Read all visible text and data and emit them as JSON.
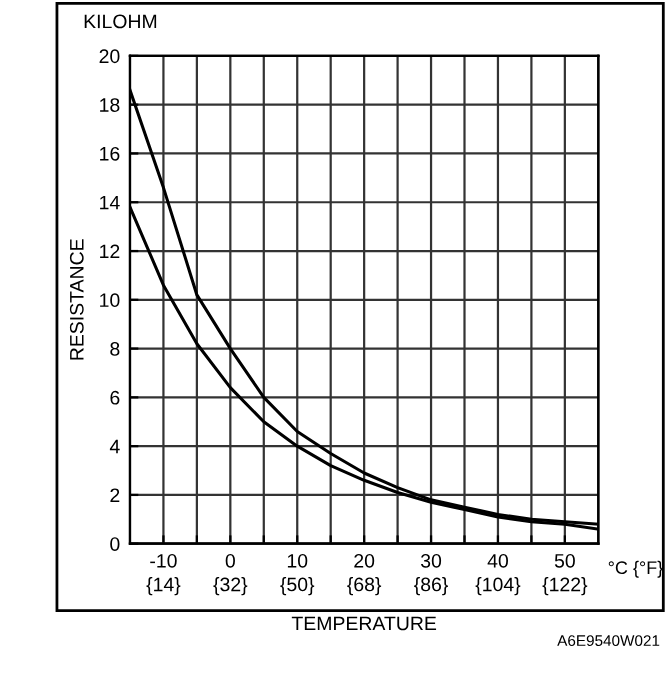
{
  "chart_data": {
    "type": "line",
    "title": "KILOHM",
    "xlabel": "TEMPERATURE",
    "ylabel": "RESISTANCE",
    "x": [
      -15,
      -10,
      -5,
      0,
      5,
      10,
      15,
      20,
      25,
      30,
      35,
      40,
      45,
      50,
      55
    ],
    "series": [
      {
        "color": "#000000",
        "values": [
          18.6,
          14.6,
          10.2,
          8.0,
          6.0,
          4.6,
          3.7,
          2.9,
          2.3,
          1.8,
          1.5,
          1.2,
          1.0,
          0.9,
          0.8
        ]
      },
      {
        "color": "#000000",
        "values": [
          13.8,
          10.6,
          8.2,
          6.4,
          5.0,
          4.0,
          3.2,
          2.6,
          2.1,
          1.7,
          1.4,
          1.1,
          0.9,
          0.8,
          0.6
        ]
      }
    ],
    "xlim": [
      -15,
      55
    ],
    "xticks": [
      -10,
      {
        "value": -5,
        "label": null
      },
      0,
      {
        "value": 5,
        "label": null
      },
      10,
      {
        "value": 15,
        "label": null
      },
      20,
      {
        "value": 25,
        "label": null
      },
      30,
      {
        "value": 35,
        "label": null
      },
      40,
      {
        "value": 45,
        "label": null
      },
      50
    ],
    "x2lim": [
      5,
      131
    ],
    "x2ticks": [
      {
        "value": 14,
        "label": "{14}"
      },
      {
        "value": 32,
        "label": "{32}"
      },
      {
        "value": 50,
        "label": "{50}"
      },
      {
        "value": 68,
        "label": "{68}"
      },
      {
        "value": 86,
        "label": "{86}"
      },
      {
        "value": 104,
        "label": "{104}"
      },
      {
        "value": 122,
        "label": "{122}"
      }
    ],
    "ylim": [
      0,
      20
    ],
    "yticks": [
      0,
      2,
      4,
      6,
      8,
      10,
      12,
      14,
      16,
      18,
      20
    ],
    "grid": true,
    "marker": "none",
    "line_style": "solid",
    "annotations": [
      "°C {°F}",
      "A6E9540W021"
    ]
  }
}
